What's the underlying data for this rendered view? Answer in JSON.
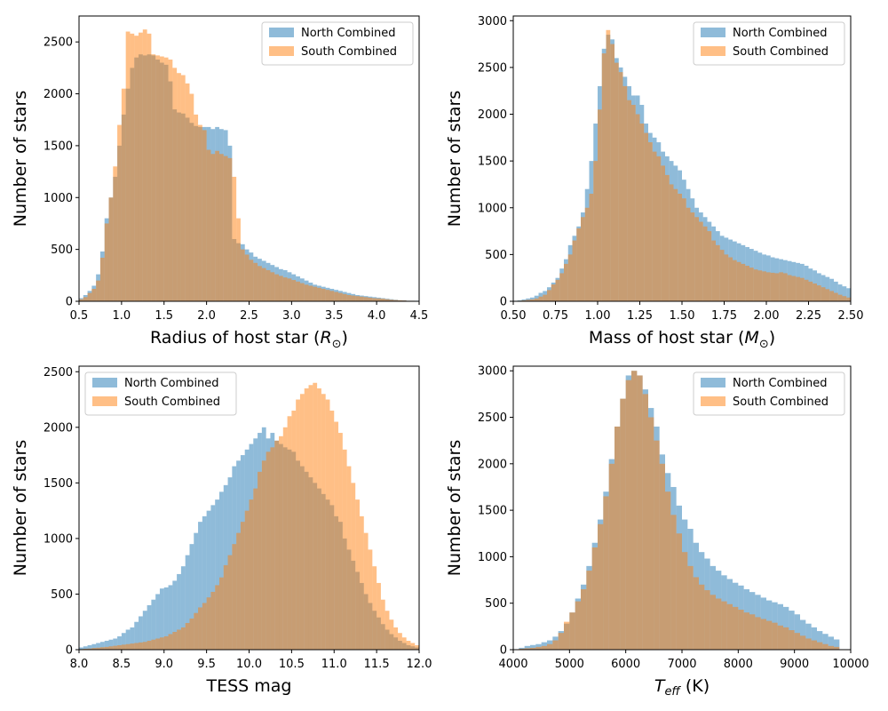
{
  "colors": {
    "north": "#1f77b4",
    "south": "#ff7f0e"
  },
  "chart_data": [
    {
      "type": "histogram",
      "xlabel": "Radius of host star",
      "xlabel_unit": "R",
      "ylabel": "Number of stars",
      "xlim": [
        0.5,
        4.5
      ],
      "ylim": [
        0,
        2750
      ],
      "xticks": [
        0.5,
        1.0,
        1.5,
        2.0,
        2.5,
        3.0,
        3.5,
        4.0,
        4.5
      ],
      "xtick_labels": [
        "0.5",
        "1.0",
        "1.5",
        "2.0",
        "2.5",
        "3.0",
        "3.5",
        "4.0",
        "4.5"
      ],
      "yticks": [
        0,
        500,
        1000,
        1500,
        2000,
        2500
      ],
      "ytick_labels": [
        "0",
        "500",
        "1000",
        "1500",
        "2000",
        "2500"
      ],
      "legend": "top-right",
      "x": [
        0.5,
        0.55,
        0.6,
        0.65,
        0.7,
        0.75,
        0.8,
        0.85,
        0.9,
        0.95,
        1.0,
        1.05,
        1.1,
        1.15,
        1.2,
        1.25,
        1.3,
        1.35,
        1.4,
        1.45,
        1.5,
        1.55,
        1.6,
        1.65,
        1.7,
        1.75,
        1.8,
        1.85,
        1.9,
        1.95,
        2.0,
        2.05,
        2.1,
        2.15,
        2.2,
        2.25,
        2.3,
        2.35,
        2.4,
        2.45,
        2.5,
        2.55,
        2.6,
        2.65,
        2.7,
        2.75,
        2.8,
        2.85,
        2.9,
        2.95,
        3.0,
        3.05,
        3.1,
        3.15,
        3.2,
        3.25,
        3.3,
        3.35,
        3.4,
        3.45,
        3.5,
        3.55,
        3.6,
        3.65,
        3.7,
        3.75,
        3.8,
        3.85,
        3.9,
        3.95,
        4.0,
        4.05,
        4.1,
        4.15,
        4.2,
        4.25,
        4.3,
        4.35,
        4.4,
        4.45
      ],
      "bin_width": 0.05,
      "series": [
        {
          "name": "North Combined",
          "color": "#1f77b4",
          "values": [
            30,
            60,
            100,
            150,
            260,
            480,
            800,
            1000,
            1200,
            1500,
            1800,
            2050,
            2250,
            2350,
            2380,
            2370,
            2380,
            2370,
            2330,
            2300,
            2280,
            2120,
            1850,
            1820,
            1810,
            1770,
            1720,
            1690,
            1680,
            1680,
            1680,
            1660,
            1680,
            1660,
            1650,
            1500,
            600,
            560,
            550,
            500,
            470,
            430,
            410,
            390,
            370,
            350,
            330,
            310,
            300,
            280,
            260,
            240,
            220,
            200,
            180,
            160,
            150,
            140,
            130,
            120,
            110,
            100,
            90,
            80,
            70,
            60,
            55,
            50,
            45,
            40,
            35,
            30,
            25,
            20,
            15,
            10,
            10,
            5,
            5,
            5
          ]
        },
        {
          "name": "South Combined",
          "color": "#ff7f0e",
          "values": [
            20,
            40,
            80,
            120,
            200,
            420,
            750,
            1000,
            1300,
            1700,
            2050,
            2600,
            2580,
            2560,
            2590,
            2620,
            2580,
            2380,
            2370,
            2360,
            2350,
            2330,
            2250,
            2200,
            2180,
            2100,
            2000,
            1800,
            1700,
            1650,
            1460,
            1420,
            1450,
            1420,
            1400,
            1380,
            1200,
            800,
            500,
            450,
            400,
            370,
            340,
            320,
            300,
            280,
            260,
            245,
            230,
            220,
            205,
            190,
            175,
            160,
            150,
            140,
            130,
            120,
            110,
            100,
            90,
            80,
            70,
            60,
            55,
            50,
            45,
            40,
            35,
            30,
            28,
            25,
            20,
            15,
            12,
            10,
            8,
            5,
            5,
            3
          ]
        }
      ]
    },
    {
      "type": "histogram",
      "xlabel": "Mass of host star",
      "xlabel_unit": "M",
      "ylabel": "Number of stars",
      "xlim": [
        0.5,
        2.5
      ],
      "ylim": [
        0,
        3050
      ],
      "xticks": [
        0.5,
        0.75,
        1.0,
        1.25,
        1.5,
        1.75,
        2.0,
        2.25,
        2.5
      ],
      "xtick_labels": [
        "0.50",
        "0.75",
        "1.00",
        "1.25",
        "1.50",
        "1.75",
        "2.00",
        "2.25",
        "2.50"
      ],
      "yticks": [
        0,
        500,
        1000,
        1500,
        2000,
        2500,
        3000
      ],
      "ytick_labels": [
        "0",
        "500",
        "1000",
        "1500",
        "2000",
        "2500",
        "3000"
      ],
      "legend": "top-right",
      "x": [
        0.5,
        0.525,
        0.55,
        0.575,
        0.6,
        0.625,
        0.65,
        0.675,
        0.7,
        0.725,
        0.75,
        0.775,
        0.8,
        0.825,
        0.85,
        0.875,
        0.9,
        0.925,
        0.95,
        0.975,
        1.0,
        1.025,
        1.05,
        1.075,
        1.1,
        1.125,
        1.15,
        1.175,
        1.2,
        1.225,
        1.25,
        1.275,
        1.3,
        1.325,
        1.35,
        1.375,
        1.4,
        1.425,
        1.45,
        1.475,
        1.5,
        1.525,
        1.55,
        1.575,
        1.6,
        1.625,
        1.65,
        1.675,
        1.7,
        1.725,
        1.75,
        1.775,
        1.8,
        1.825,
        1.85,
        1.875,
        1.9,
        1.925,
        1.95,
        1.975,
        2.0,
        2.025,
        2.05,
        2.075,
        2.1,
        2.125,
        2.15,
        2.175,
        2.2,
        2.225,
        2.25,
        2.275,
        2.3,
        2.325,
        2.35,
        2.375,
        2.4,
        2.425,
        2.45,
        2.475
      ],
      "bin_width": 0.025,
      "series": [
        {
          "name": "North Combined",
          "color": "#1f77b4",
          "values": [
            5,
            10,
            20,
            30,
            40,
            60,
            90,
            110,
            150,
            200,
            250,
            350,
            450,
            600,
            700,
            800,
            950,
            1200,
            1500,
            1900,
            2300,
            2700,
            2850,
            2800,
            2600,
            2500,
            2400,
            2300,
            2200,
            2200,
            2100,
            1900,
            1800,
            1750,
            1700,
            1600,
            1550,
            1500,
            1450,
            1400,
            1300,
            1200,
            1100,
            1000,
            950,
            900,
            850,
            800,
            750,
            700,
            680,
            660,
            640,
            620,
            600,
            580,
            560,
            540,
            520,
            500,
            490,
            470,
            460,
            450,
            440,
            430,
            420,
            410,
            400,
            380,
            350,
            330,
            300,
            280,
            260,
            240,
            210,
            180,
            160,
            140
          ]
        },
        {
          "name": "South Combined",
          "color": "#ff7f0e",
          "values": [
            3,
            6,
            10,
            15,
            20,
            30,
            50,
            70,
            120,
            180,
            230,
            300,
            400,
            500,
            650,
            780,
            900,
            1000,
            1150,
            1500,
            2050,
            2650,
            2900,
            2750,
            2550,
            2450,
            2300,
            2150,
            2100,
            2000,
            1900,
            1800,
            1700,
            1600,
            1550,
            1450,
            1350,
            1250,
            1200,
            1150,
            1100,
            1000,
            950,
            900,
            850,
            800,
            750,
            650,
            600,
            550,
            500,
            470,
            440,
            420,
            400,
            380,
            360,
            340,
            330,
            320,
            310,
            305,
            300,
            310,
            300,
            280,
            270,
            260,
            250,
            230,
            210,
            190,
            170,
            150,
            130,
            110,
            90,
            70,
            55,
            40
          ]
        }
      ]
    },
    {
      "type": "histogram",
      "xlabel": "TESS mag",
      "ylabel": "Number of stars",
      "xlim": [
        8.0,
        12.0
      ],
      "ylim": [
        0,
        2550
      ],
      "xticks": [
        8.0,
        8.5,
        9.0,
        9.5,
        10.0,
        10.5,
        11.0,
        11.5,
        12.0
      ],
      "xtick_labels": [
        "8.0",
        "8.5",
        "9.0",
        "9.5",
        "10.0",
        "10.5",
        "11.0",
        "11.5",
        "12.0"
      ],
      "yticks": [
        0,
        500,
        1000,
        1500,
        2000,
        2500
      ],
      "ytick_labels": [
        "0",
        "500",
        "1000",
        "1500",
        "2000",
        "2500"
      ],
      "legend": "top-left",
      "x": [
        8.0,
        8.05,
        8.1,
        8.15,
        8.2,
        8.25,
        8.3,
        8.35,
        8.4,
        8.45,
        8.5,
        8.55,
        8.6,
        8.65,
        8.7,
        8.75,
        8.8,
        8.85,
        8.9,
        8.95,
        9.0,
        9.05,
        9.1,
        9.15,
        9.2,
        9.25,
        9.3,
        9.35,
        9.4,
        9.45,
        9.5,
        9.55,
        9.6,
        9.65,
        9.7,
        9.75,
        9.8,
        9.85,
        9.9,
        9.95,
        10.0,
        10.05,
        10.1,
        10.15,
        10.2,
        10.25,
        10.3,
        10.35,
        10.4,
        10.45,
        10.5,
        10.55,
        10.6,
        10.65,
        10.7,
        10.75,
        10.8,
        10.85,
        10.9,
        10.95,
        11.0,
        11.05,
        11.1,
        11.15,
        11.2,
        11.25,
        11.3,
        11.35,
        11.4,
        11.45,
        11.5,
        11.55,
        11.6,
        11.65,
        11.7,
        11.75,
        11.8,
        11.85,
        11.9,
        11.95
      ],
      "bin_width": 0.05,
      "series": [
        {
          "name": "North Combined",
          "color": "#1f77b4",
          "values": [
            20,
            30,
            40,
            50,
            60,
            70,
            80,
            90,
            100,
            120,
            150,
            180,
            200,
            250,
            300,
            350,
            400,
            450,
            500,
            550,
            560,
            580,
            620,
            680,
            750,
            850,
            950,
            1050,
            1150,
            1200,
            1250,
            1300,
            1350,
            1420,
            1480,
            1550,
            1650,
            1700,
            1750,
            1800,
            1850,
            1900,
            1950,
            2000,
            1900,
            1950,
            1880,
            1850,
            1820,
            1800,
            1780,
            1700,
            1650,
            1600,
            1550,
            1500,
            1450,
            1400,
            1350,
            1300,
            1200,
            1150,
            1000,
            900,
            800,
            700,
            600,
            500,
            420,
            350,
            290,
            230,
            180,
            140,
            110,
            80,
            60,
            40,
            30,
            20
          ]
        },
        {
          "name": "South Combined",
          "color": "#ff7f0e",
          "values": [
            5,
            8,
            10,
            15,
            18,
            22,
            25,
            30,
            35,
            40,
            45,
            50,
            55,
            60,
            65,
            70,
            80,
            90,
            100,
            110,
            120,
            140,
            160,
            180,
            200,
            240,
            280,
            330,
            380,
            420,
            470,
            520,
            580,
            650,
            760,
            850,
            950,
            1050,
            1150,
            1250,
            1350,
            1450,
            1600,
            1700,
            1780,
            1820,
            1880,
            1920,
            2000,
            2100,
            2150,
            2250,
            2300,
            2350,
            2380,
            2400,
            2350,
            2300,
            2250,
            2150,
            2050,
            1950,
            1800,
            1650,
            1500,
            1350,
            1200,
            1050,
            900,
            750,
            600,
            450,
            350,
            270,
            200,
            150,
            110,
            80,
            60,
            40
          ]
        }
      ]
    },
    {
      "type": "histogram",
      "xlabel": "T",
      "xlabel_sub": "eff",
      "xlabel_unit": "(K)",
      "ylabel": "Number of stars",
      "xlim": [
        4000,
        10000
      ],
      "ylim": [
        0,
        3050
      ],
      "xticks": [
        4000,
        5000,
        6000,
        7000,
        8000,
        9000,
        10000
      ],
      "xtick_labels": [
        "4000",
        "5000",
        "6000",
        "7000",
        "8000",
        "9000",
        "10000"
      ],
      "yticks": [
        0,
        500,
        1000,
        1500,
        2000,
        2500,
        3000
      ],
      "ytick_labels": [
        "0",
        "500",
        "1000",
        "1500",
        "2000",
        "2500",
        "3000"
      ],
      "legend": "top-right",
      "x": [
        4100,
        4200,
        4300,
        4400,
        4500,
        4600,
        4700,
        4800,
        4900,
        5000,
        5100,
        5200,
        5300,
        5400,
        5500,
        5600,
        5700,
        5800,
        5900,
        6000,
        6100,
        6200,
        6300,
        6400,
        6500,
        6600,
        6700,
        6800,
        6900,
        7000,
        7100,
        7200,
        7300,
        7400,
        7500,
        7600,
        7700,
        7800,
        7900,
        8000,
        8100,
        8200,
        8300,
        8400,
        8500,
        8600,
        8700,
        8800,
        8900,
        9000,
        9100,
        9200,
        9300,
        9400,
        9500,
        9600,
        9700
      ],
      "bin_width": 100,
      "series": [
        {
          "name": "North Combined",
          "color": "#1f77b4",
          "values": [
            20,
            40,
            50,
            60,
            80,
            100,
            140,
            200,
            280,
            400,
            550,
            700,
            900,
            1150,
            1400,
            1700,
            2050,
            2400,
            2700,
            2950,
            3000,
            2950,
            2800,
            2600,
            2400,
            2100,
            1900,
            1750,
            1550,
            1400,
            1300,
            1150,
            1050,
            980,
            900,
            850,
            800,
            760,
            720,
            690,
            650,
            620,
            590,
            560,
            530,
            510,
            490,
            460,
            420,
            380,
            320,
            280,
            240,
            200,
            170,
            140,
            110
          ]
        },
        {
          "name": "South Combined",
          "color": "#ff7f0e",
          "values": [
            10,
            15,
            20,
            30,
            40,
            60,
            100,
            180,
            300,
            400,
            520,
            650,
            850,
            1100,
            1350,
            1650,
            2000,
            2400,
            2700,
            2900,
            3000,
            2950,
            2750,
            2500,
            2250,
            2000,
            1700,
            1450,
            1250,
            1050,
            900,
            780,
            700,
            640,
            590,
            550,
            520,
            490,
            460,
            430,
            400,
            380,
            350,
            330,
            310,
            290,
            260,
            240,
            210,
            180,
            150,
            120,
            100,
            80,
            60,
            40,
            30
          ]
        }
      ]
    }
  ]
}
